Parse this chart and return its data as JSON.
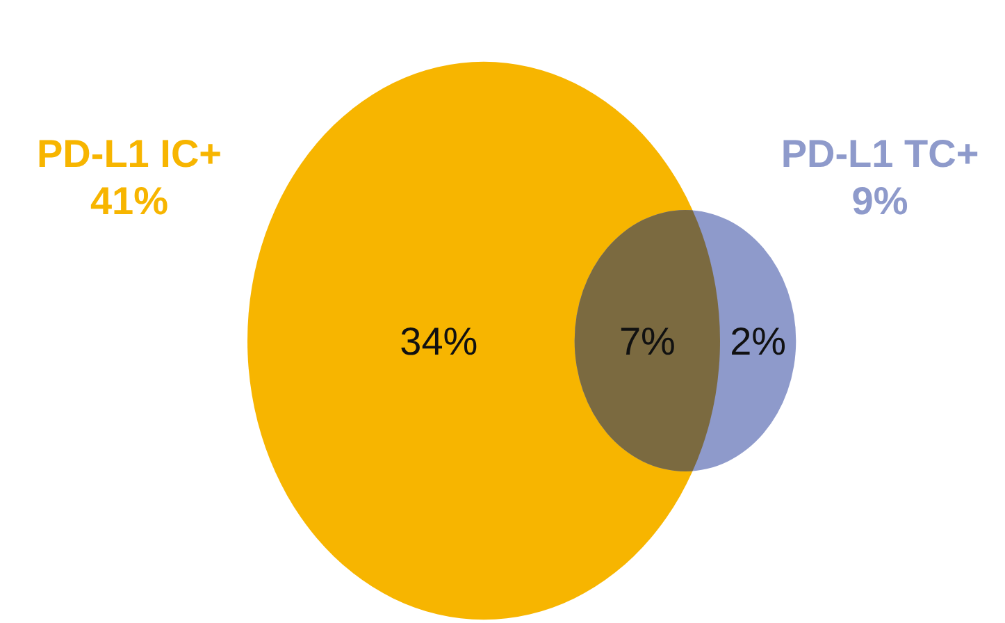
{
  "chart_data": {
    "type": "other",
    "categories": [
      "PD-L1 IC+",
      "PD-L1 TC+"
    ],
    "values": [
      41,
      9
    ],
    "colors": [
      "#f7b500",
      "#8e9acb"
    ],
    "value_labels": [
      "41%",
      "9%"
    ],
    "annotations": [
      "34%",
      "7%",
      "2%"
    ]
  }
}
